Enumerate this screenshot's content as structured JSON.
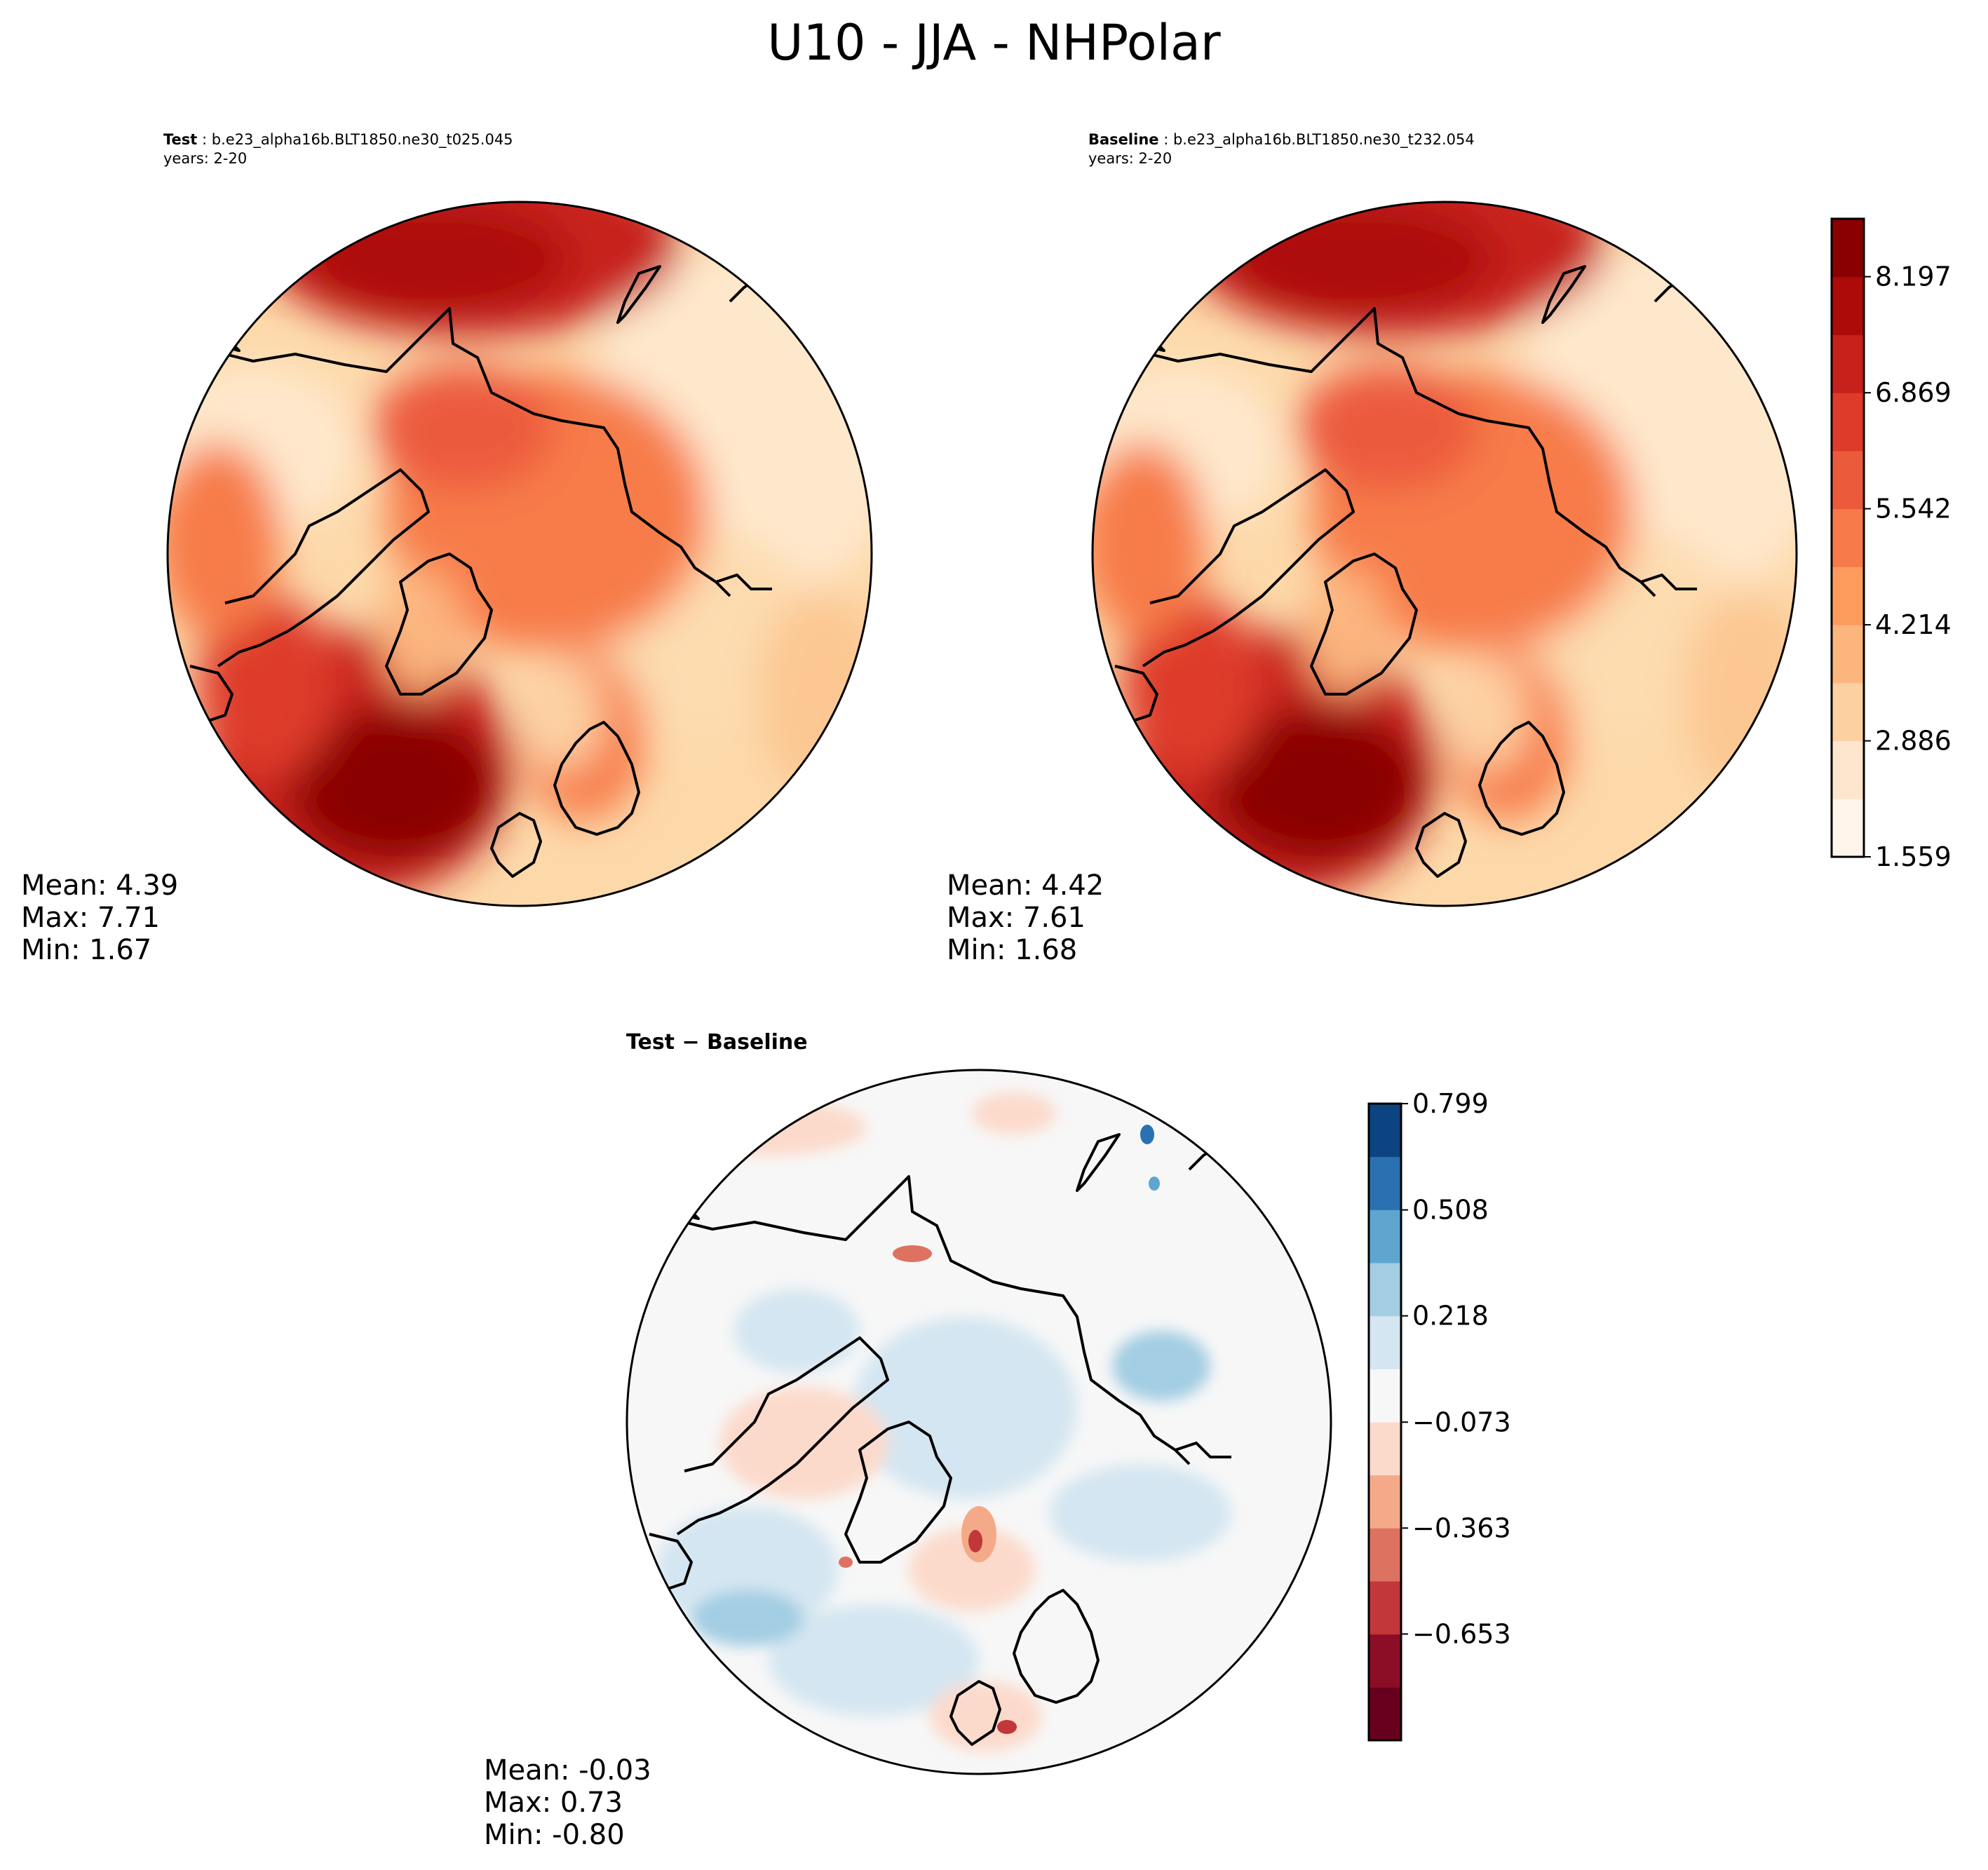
{
  "title": "U10 - JJA - NHPolar",
  "panels": [
    {
      "id": "test",
      "label": "Test",
      "case": "b.e23_alpha16b.BLT1850.ne30_t025.045",
      "years": "years: 2-20",
      "stats": {
        "mean": "Mean:  4.39",
        "max": "Max:  7.71",
        "min": "Min:  1.67"
      }
    },
    {
      "id": "baseline",
      "label": "Baseline",
      "case": "b.e23_alpha16b.BLT1850.ne30_t232.054",
      "years": "years: 2-20",
      "stats": {
        "mean": "Mean:  4.42",
        "max": "Max:  7.61",
        "min": "Min:  1.68"
      }
    },
    {
      "id": "diff",
      "label": "Test − Baseline",
      "stats": {
        "mean": "Mean: -0.03",
        "max": "Max:  0.73",
        "min": "Min: -0.80"
      }
    }
  ],
  "chart_data": [
    {
      "type": "heatmap",
      "projection": "north-polar-stereographic",
      "title": "Test",
      "colormap": "OrRd-like (light cream to dark red)",
      "colorbar": {
        "ticks": [
          "1.559",
          "2.886",
          "4.214",
          "5.542",
          "6.869",
          "8.197"
        ],
        "range": [
          1.559,
          8.86
        ],
        "levels": 11,
        "colors": [
          "#fff5eb",
          "#fee6ce",
          "#fdd0a2",
          "#fdb57e",
          "#fc9b5c",
          "#f77b4a",
          "#ec5a3c",
          "#de3b2a",
          "#c8201a",
          "#ad0a0a",
          "#8a0000"
        ]
      },
      "mean": 4.39,
      "max": 7.71,
      "min": 1.67
    },
    {
      "type": "heatmap",
      "projection": "north-polar-stereographic",
      "title": "Baseline",
      "mean": 4.42,
      "max": 7.61,
      "min": 1.68
    },
    {
      "type": "heatmap",
      "projection": "north-polar-stereographic",
      "title": "Test − Baseline",
      "colormap": "RdBu_r (diverging)",
      "colorbar": {
        "ticks": [
          "0.799",
          "0.508",
          "0.218",
          "−0.073",
          "−0.363",
          "−0.653"
        ],
        "range": [
          -0.944,
          0.799
        ],
        "levels": 12,
        "colors": [
          "#67001f",
          "#8b0e26",
          "#c1373a",
          "#de7260",
          "#f4aa88",
          "#fcdacb",
          "#f7f7f7",
          "#d4e6f1",
          "#a3cde3",
          "#5ea6cf",
          "#2a71b1",
          "#0c4481"
        ]
      },
      "mean": -0.03,
      "max": 0.73,
      "min": -0.8
    }
  ]
}
